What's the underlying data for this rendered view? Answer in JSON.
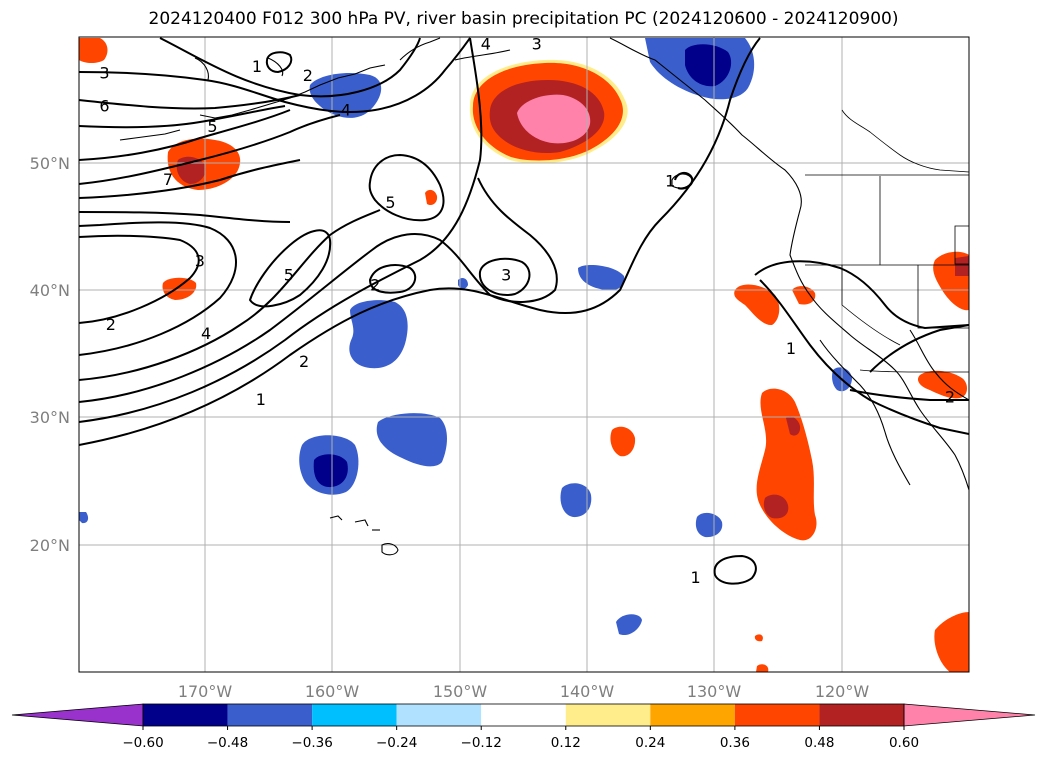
{
  "title": "2024120400 F012 300 hPa PV, river basin precipitation PC (2024120600 - 2024120900)",
  "lat_labels": [
    "50°N",
    "40°N",
    "30°N",
    "20°N"
  ],
  "lon_labels": [
    "170°W",
    "160°W",
    "150°W",
    "140°W",
    "130°W",
    "120°W"
  ],
  "colorbar": {
    "ticks": [
      "−0.60",
      "−0.48",
      "−0.36",
      "−0.24",
      "−0.12",
      "0.12",
      "0.24",
      "0.36",
      "0.48",
      "0.60"
    ],
    "colors": [
      "#9932cc",
      "#00008b",
      "#3a5fcd",
      "#00bfff",
      "#b0e2ff",
      "#ffffff",
      "#ffec8b",
      "#ffa500",
      "#ff4500",
      "#b22222",
      "#ff82ab"
    ]
  },
  "map": {
    "extent_lon": [
      -180,
      -110
    ],
    "extent_lat": [
      10,
      60
    ],
    "contour_labels": [
      {
        "text": "3",
        "lon": -178,
        "lat": 57.2
      },
      {
        "text": "6",
        "lon": -178,
        "lat": 54.6
      },
      {
        "text": "7",
        "lon": -173,
        "lat": 48.8
      },
      {
        "text": "3",
        "lon": -170.5,
        "lat": 42.4
      },
      {
        "text": "2",
        "lon": -177.5,
        "lat": 37.4
      },
      {
        "text": "4",
        "lon": -170,
        "lat": 36.7
      },
      {
        "text": "5",
        "lon": -169.5,
        "lat": 53.0
      },
      {
        "text": "1",
        "lon": -166,
        "lat": 57.7
      },
      {
        "text": "2",
        "lon": -162,
        "lat": 57.0
      },
      {
        "text": "4",
        "lon": -159,
        "lat": 54.3
      },
      {
        "text": "4",
        "lon": -148,
        "lat": 59.5
      },
      {
        "text": "3",
        "lon": -144,
        "lat": 59.5
      },
      {
        "text": "5",
        "lon": -155.5,
        "lat": 47.0
      },
      {
        "text": "5",
        "lon": -163.5,
        "lat": 41.3
      },
      {
        "text": "2",
        "lon": -156.7,
        "lat": 40.5
      },
      {
        "text": "3",
        "lon": -146.4,
        "lat": 41.3
      },
      {
        "text": "2",
        "lon": -162.3,
        "lat": 34.5
      },
      {
        "text": "1",
        "lon": -165.7,
        "lat": 31.5
      },
      {
        "text": "1",
        "lon": -133.5,
        "lat": 48.7
      },
      {
        "text": "1",
        "lon": -124,
        "lat": 35.5
      },
      {
        "text": "2",
        "lon": -111.5,
        "lat": 31.7
      },
      {
        "text": "1",
        "lon": -131.5,
        "lat": 17.5
      }
    ]
  }
}
